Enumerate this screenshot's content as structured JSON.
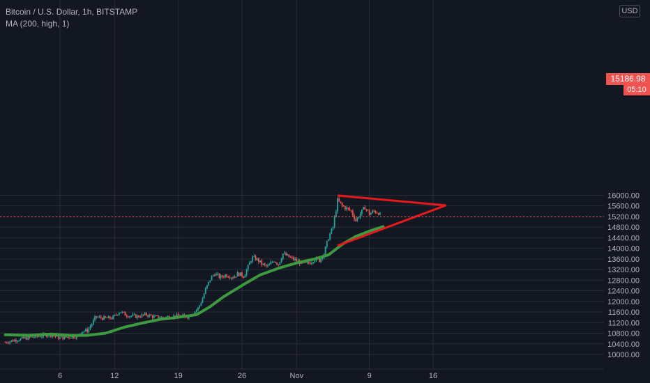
{
  "legend": {
    "symbol": "Bitcoin / U.S. Dollar, 1h, BITSTAMP",
    "indicator": "MA (200, high, 1)"
  },
  "currency_label": "USD",
  "last_price_label": "15186.98",
  "countdown_label": "05:10",
  "colors": {
    "background": "#131722",
    "grid": "#2a2e39",
    "up_candle": "#26a69a",
    "down_candle": "#ef5350",
    "ma_line": "#3e9a3e",
    "triangle": "#e8191c",
    "price_line": "#ef5350",
    "axis_text": "#b2b5be"
  },
  "chart_data": {
    "type": "line",
    "title": "Bitcoin / U.S. Dollar, 1h, BITSTAMP",
    "xlabel": "",
    "ylabel": "",
    "ylim": [
      9850,
      16300
    ],
    "y_ticks": [
      10000,
      10400,
      10800,
      11200,
      11600,
      12000,
      12400,
      12800,
      13200,
      13600,
      14000,
      14400,
      14800,
      15200,
      15600,
      16000
    ],
    "x_ticks": [
      "6",
      "12",
      "19",
      "26",
      "Nov",
      "9",
      "16"
    ],
    "x_tick_days": [
      6,
      12,
      19,
      26,
      32,
      40,
      47
    ],
    "last_price": 15186.98,
    "grid": true,
    "series": [
      {
        "name": "price",
        "style": "candles",
        "points": [
          {
            "day": 0.0,
            "value": 10460
          },
          {
            "day": 1.0,
            "value": 10540
          },
          {
            "day": 2.0,
            "value": 10600
          },
          {
            "day": 3.0,
            "value": 10650
          },
          {
            "day": 4.0,
            "value": 10700
          },
          {
            "day": 4.8,
            "value": 10760
          },
          {
            "day": 5.3,
            "value": 10700
          },
          {
            "day": 6.0,
            "value": 10620
          },
          {
            "day": 7.0,
            "value": 10660
          },
          {
            "day": 8.0,
            "value": 10690
          },
          {
            "day": 8.3,
            "value": 10880
          },
          {
            "day": 9.0,
            "value": 10900
          },
          {
            "day": 9.6,
            "value": 11200
          },
          {
            "day": 9.9,
            "value": 11420
          },
          {
            "day": 10.5,
            "value": 11380
          },
          {
            "day": 11.0,
            "value": 11360
          },
          {
            "day": 11.8,
            "value": 11380
          },
          {
            "day": 12.3,
            "value": 11550
          },
          {
            "day": 12.6,
            "value": 11620
          },
          {
            "day": 13.3,
            "value": 11480
          },
          {
            "day": 14.5,
            "value": 11430
          },
          {
            "day": 15.5,
            "value": 11500
          },
          {
            "day": 16.3,
            "value": 11420
          },
          {
            "day": 17.2,
            "value": 11390
          },
          {
            "day": 18.2,
            "value": 11430
          },
          {
            "day": 19.0,
            "value": 11450
          },
          {
            "day": 20.0,
            "value": 11430
          },
          {
            "day": 20.6,
            "value": 11550
          },
          {
            "day": 21.2,
            "value": 11750
          },
          {
            "day": 21.6,
            "value": 12050
          },
          {
            "day": 22.0,
            "value": 12450
          },
          {
            "day": 22.6,
            "value": 12900
          },
          {
            "day": 23.0,
            "value": 13050
          },
          {
            "day": 23.6,
            "value": 12900
          },
          {
            "day": 24.2,
            "value": 13000
          },
          {
            "day": 25.0,
            "value": 12920
          },
          {
            "day": 25.6,
            "value": 13050
          },
          {
            "day": 26.2,
            "value": 12950
          },
          {
            "day": 26.6,
            "value": 13250
          },
          {
            "day": 27.1,
            "value": 13650
          },
          {
            "day": 27.6,
            "value": 13600
          },
          {
            "day": 28.2,
            "value": 13400
          },
          {
            "day": 28.8,
            "value": 13300
          },
          {
            "day": 29.5,
            "value": 13550
          },
          {
            "day": 30.0,
            "value": 13400
          },
          {
            "day": 30.5,
            "value": 13800
          },
          {
            "day": 31.0,
            "value": 13700
          },
          {
            "day": 31.6,
            "value": 13600
          },
          {
            "day": 32.2,
            "value": 13500
          },
          {
            "day": 32.8,
            "value": 13400
          },
          {
            "day": 33.4,
            "value": 13450
          },
          {
            "day": 34.0,
            "value": 13600
          },
          {
            "day": 34.5,
            "value": 13550
          },
          {
            "day": 35.0,
            "value": 13800
          },
          {
            "day": 35.5,
            "value": 14400
          },
          {
            "day": 36.0,
            "value": 14800
          },
          {
            "day": 36.5,
            "value": 15800
          },
          {
            "day": 37.0,
            "value": 15600
          },
          {
            "day": 37.5,
            "value": 15500
          },
          {
            "day": 38.0,
            "value": 15400
          },
          {
            "day": 38.5,
            "value": 15050
          },
          {
            "day": 39.0,
            "value": 15300
          },
          {
            "day": 39.5,
            "value": 15550
          },
          {
            "day": 40.0,
            "value": 15300
          },
          {
            "day": 40.5,
            "value": 15400
          },
          {
            "day": 41.0,
            "value": 15350
          },
          {
            "day": 41.3,
            "value": 15187
          }
        ]
      },
      {
        "name": "MA (200, high, 1)",
        "style": "line",
        "points": [
          {
            "day": 0.0,
            "value": 10740
          },
          {
            "day": 2.5,
            "value": 10720
          },
          {
            "day": 5.0,
            "value": 10770
          },
          {
            "day": 7.0,
            "value": 10720
          },
          {
            "day": 9.0,
            "value": 10720
          },
          {
            "day": 11.0,
            "value": 10800
          },
          {
            "day": 13.0,
            "value": 11020
          },
          {
            "day": 15.0,
            "value": 11180
          },
          {
            "day": 17.0,
            "value": 11320
          },
          {
            "day": 19.0,
            "value": 11400
          },
          {
            "day": 21.0,
            "value": 11500
          },
          {
            "day": 22.5,
            "value": 11800
          },
          {
            "day": 24.0,
            "value": 12180
          },
          {
            "day": 26.0,
            "value": 12600
          },
          {
            "day": 28.0,
            "value": 13000
          },
          {
            "day": 30.0,
            "value": 13250
          },
          {
            "day": 32.0,
            "value": 13450
          },
          {
            "day": 34.0,
            "value": 13600
          },
          {
            "day": 35.5,
            "value": 13750
          },
          {
            "day": 37.0,
            "value": 14150
          },
          {
            "day": 38.5,
            "value": 14450
          },
          {
            "day": 40.0,
            "value": 14650
          },
          {
            "day": 41.5,
            "value": 14820
          }
        ]
      },
      {
        "name": "",
        "style": "drawing",
        "points": [
          {
            "day": 36.5,
            "value": 15990
          },
          {
            "day": 48.4,
            "value": 15620
          },
          {
            "day": 36.5,
            "value": 14100
          }
        ]
      }
    ]
  }
}
